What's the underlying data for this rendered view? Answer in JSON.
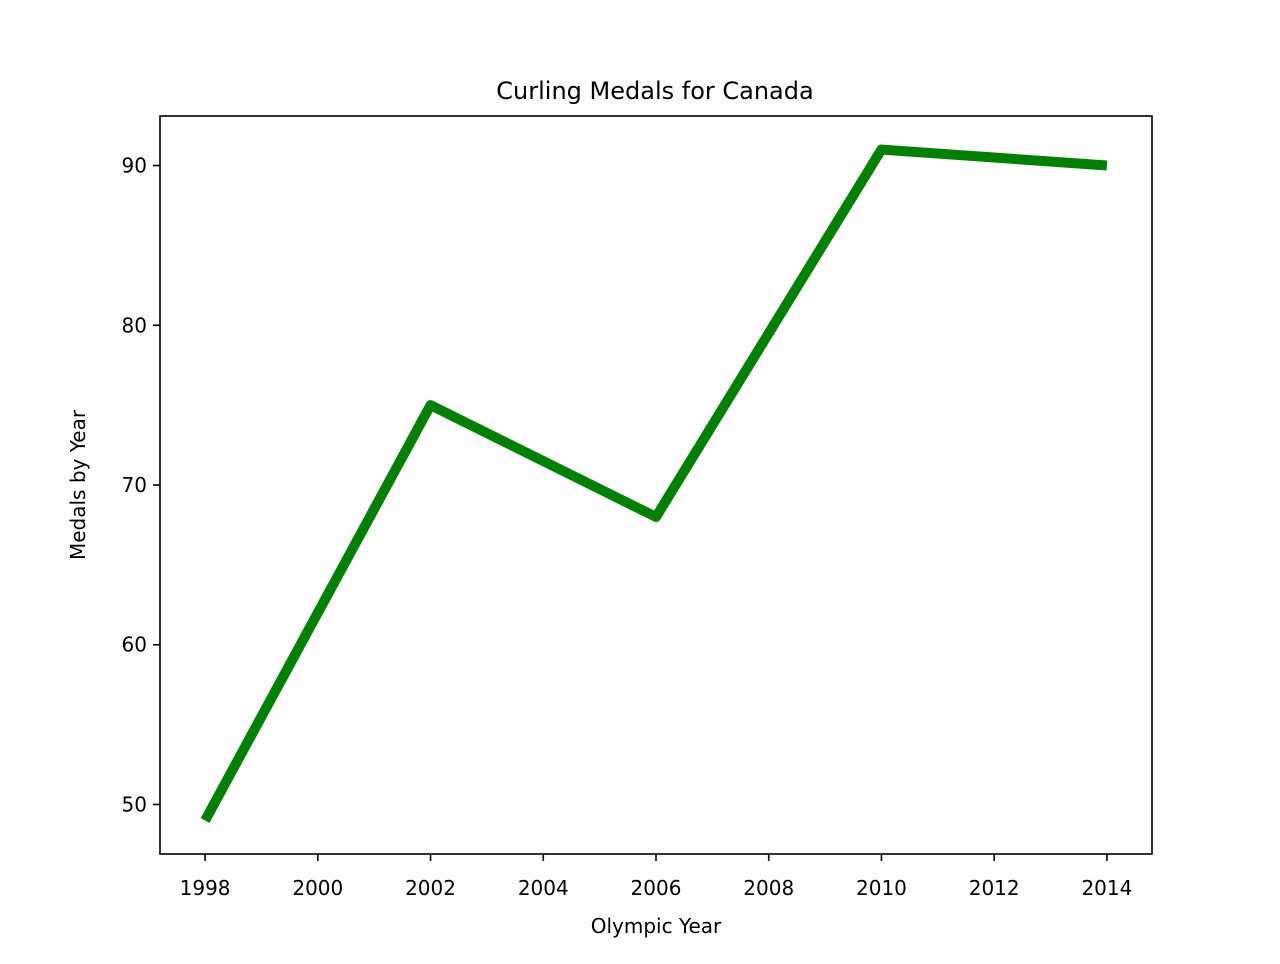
{
  "chart_data": {
    "type": "line",
    "title": "Curling Medals for Canada",
    "xlabel": "Olympic Year",
    "ylabel": "Medals by Year",
    "xlim": [
      1997.2,
      2014.8
    ],
    "ylim": [
      46.9,
      93.1
    ],
    "xticks": [
      1998,
      2000,
      2002,
      2004,
      2006,
      2008,
      2010,
      2012,
      2014
    ],
    "yticks": [
      50,
      60,
      70,
      80,
      90
    ],
    "grid": false,
    "legend": null,
    "series": [
      {
        "color": "#008000",
        "x": [
          1998,
          2002,
          2006,
          2010,
          2014
        ],
        "y": [
          49,
          75,
          68,
          91,
          90
        ]
      }
    ]
  }
}
